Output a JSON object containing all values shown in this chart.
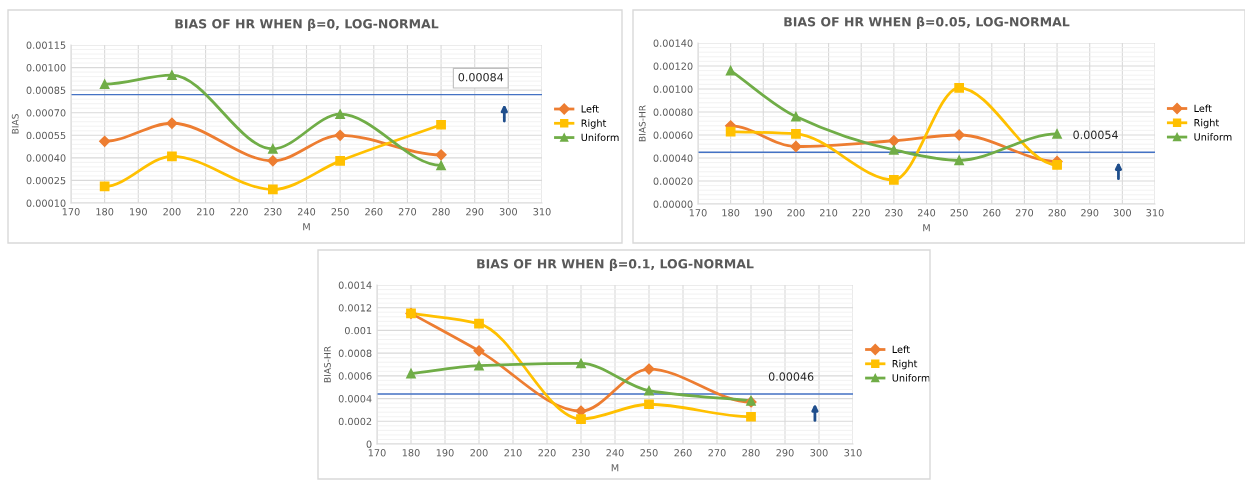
{
  "chart_data": [
    {
      "type": "line",
      "title": "BIAS OF HR WHEN β=0, LOG-NORMAL",
      "xlabel": "M",
      "ylabel": "BIAS",
      "x": [
        180,
        200,
        230,
        250,
        280
      ],
      "series": [
        {
          "name": "Left",
          "color": "#ed7d31",
          "marker": "diamond",
          "values": [
            0.00051,
            0.00063,
            0.00038,
            0.00055,
            0.00042
          ]
        },
        {
          "name": "Right",
          "color": "#ffc000",
          "marker": "square",
          "values": [
            0.00021,
            0.00041,
            0.00019,
            0.00038,
            0.00062
          ]
        },
        {
          "name": "Uniform",
          "color": "#70ad47",
          "marker": "triangle",
          "values": [
            0.00089,
            0.00095,
            0.00046,
            0.00069,
            0.00035
          ]
        }
      ],
      "xlim": [
        170,
        310
      ],
      "xticks": [
        170,
        180,
        190,
        200,
        210,
        220,
        230,
        240,
        250,
        260,
        270,
        280,
        290,
        300,
        310
      ],
      "ylim": [
        0.0001,
        0.00115
      ],
      "yticks": [
        {
          "value": 0.0001,
          "label": "0.00010"
        },
        {
          "value": 0.00025,
          "label": "0.00025"
        },
        {
          "value": 0.0004,
          "label": "0.00040"
        },
        {
          "value": 0.00055,
          "label": "0.00055"
        },
        {
          "value": 0.0007,
          "label": "0.00070"
        },
        {
          "value": 0.00085,
          "label": "0.00085"
        },
        {
          "value": 0.001,
          "label": "0.00100"
        },
        {
          "value": 0.00115,
          "label": "0.00115"
        }
      ],
      "ref_lines": [
        {
          "axis": "y",
          "value": 0.00082,
          "color": "#4472c4"
        }
      ],
      "annotations": [
        "0.00084"
      ],
      "grid": true,
      "legend": "right"
    },
    {
      "type": "line",
      "title": "BIAS OF HR WHEN β=0.05, LOG-NORMAL",
      "xlabel": "M",
      "ylabel": "BIAS-HR",
      "x": [
        180,
        200,
        230,
        250,
        280
      ],
      "series": [
        {
          "name": "Left",
          "color": "#ed7d31",
          "marker": "diamond",
          "values": [
            0.00068,
            0.0005,
            0.00055,
            0.0006,
            0.00037
          ]
        },
        {
          "name": "Right",
          "color": "#ffc000",
          "marker": "square",
          "values": [
            0.00063,
            0.00061,
            0.00021,
            0.00101,
            0.00034
          ]
        },
        {
          "name": "Uniform",
          "color": "#70ad47",
          "marker": "triangle",
          "values": [
            0.00116,
            0.00076,
            0.00047,
            0.00038,
            0.00061
          ]
        }
      ],
      "xlim": [
        170,
        310
      ],
      "xticks": [
        170,
        180,
        190,
        200,
        210,
        220,
        230,
        240,
        250,
        260,
        270,
        280,
        290,
        300,
        310
      ],
      "ylim": [
        0,
        0.0014
      ],
      "yticks": [
        {
          "value": 0,
          "label": "0.00000"
        },
        {
          "value": 0.0002,
          "label": "0.00020"
        },
        {
          "value": 0.0004,
          "label": "0.00040"
        },
        {
          "value": 0.0006,
          "label": "0.00060"
        },
        {
          "value": 0.0008,
          "label": "0.00080"
        },
        {
          "value": 0.001,
          "label": "0.00100"
        },
        {
          "value": 0.0012,
          "label": "0.00120"
        },
        {
          "value": 0.0014,
          "label": "0.00140"
        }
      ],
      "ref_lines": [
        {
          "axis": "y",
          "value": 0.00045,
          "color": "#4472c4"
        }
      ],
      "annotations": [
        "0.00054"
      ],
      "grid": true,
      "legend": "right"
    },
    {
      "type": "line",
      "title": "BIAS OF HR WHEN β=0.1, LOG-NORMAL",
      "xlabel": "M",
      "ylabel": "BIAS-HR",
      "x": [
        180,
        200,
        230,
        250,
        280
      ],
      "series": [
        {
          "name": "Left",
          "color": "#ed7d31",
          "marker": "diamond",
          "values": [
            0.00115,
            0.00082,
            0.00029,
            0.00066,
            0.00037
          ]
        },
        {
          "name": "Right",
          "color": "#ffc000",
          "marker": "square",
          "values": [
            0.00115,
            0.00106,
            0.00022,
            0.00035,
            0.00024
          ]
        },
        {
          "name": "Uniform",
          "color": "#70ad47",
          "marker": "triangle",
          "values": [
            0.00062,
            0.00069,
            0.00071,
            0.00047,
            0.00038
          ]
        }
      ],
      "xlim": [
        170,
        310
      ],
      "xticks": [
        170,
        180,
        190,
        200,
        210,
        220,
        230,
        240,
        250,
        260,
        270,
        280,
        290,
        300,
        310
      ],
      "ylim": [
        0,
        0.0014
      ],
      "yticks": [
        0,
        0.0002,
        0.0004,
        0.0006,
        0.0008,
        0.001,
        0.0012,
        0.0014
      ],
      "ref_lines": [
        {
          "axis": "y",
          "value": 0.00044,
          "color": "#4472c4"
        }
      ],
      "annotations": [
        "0.00046"
      ],
      "grid": true,
      "legend": "right"
    }
  ]
}
